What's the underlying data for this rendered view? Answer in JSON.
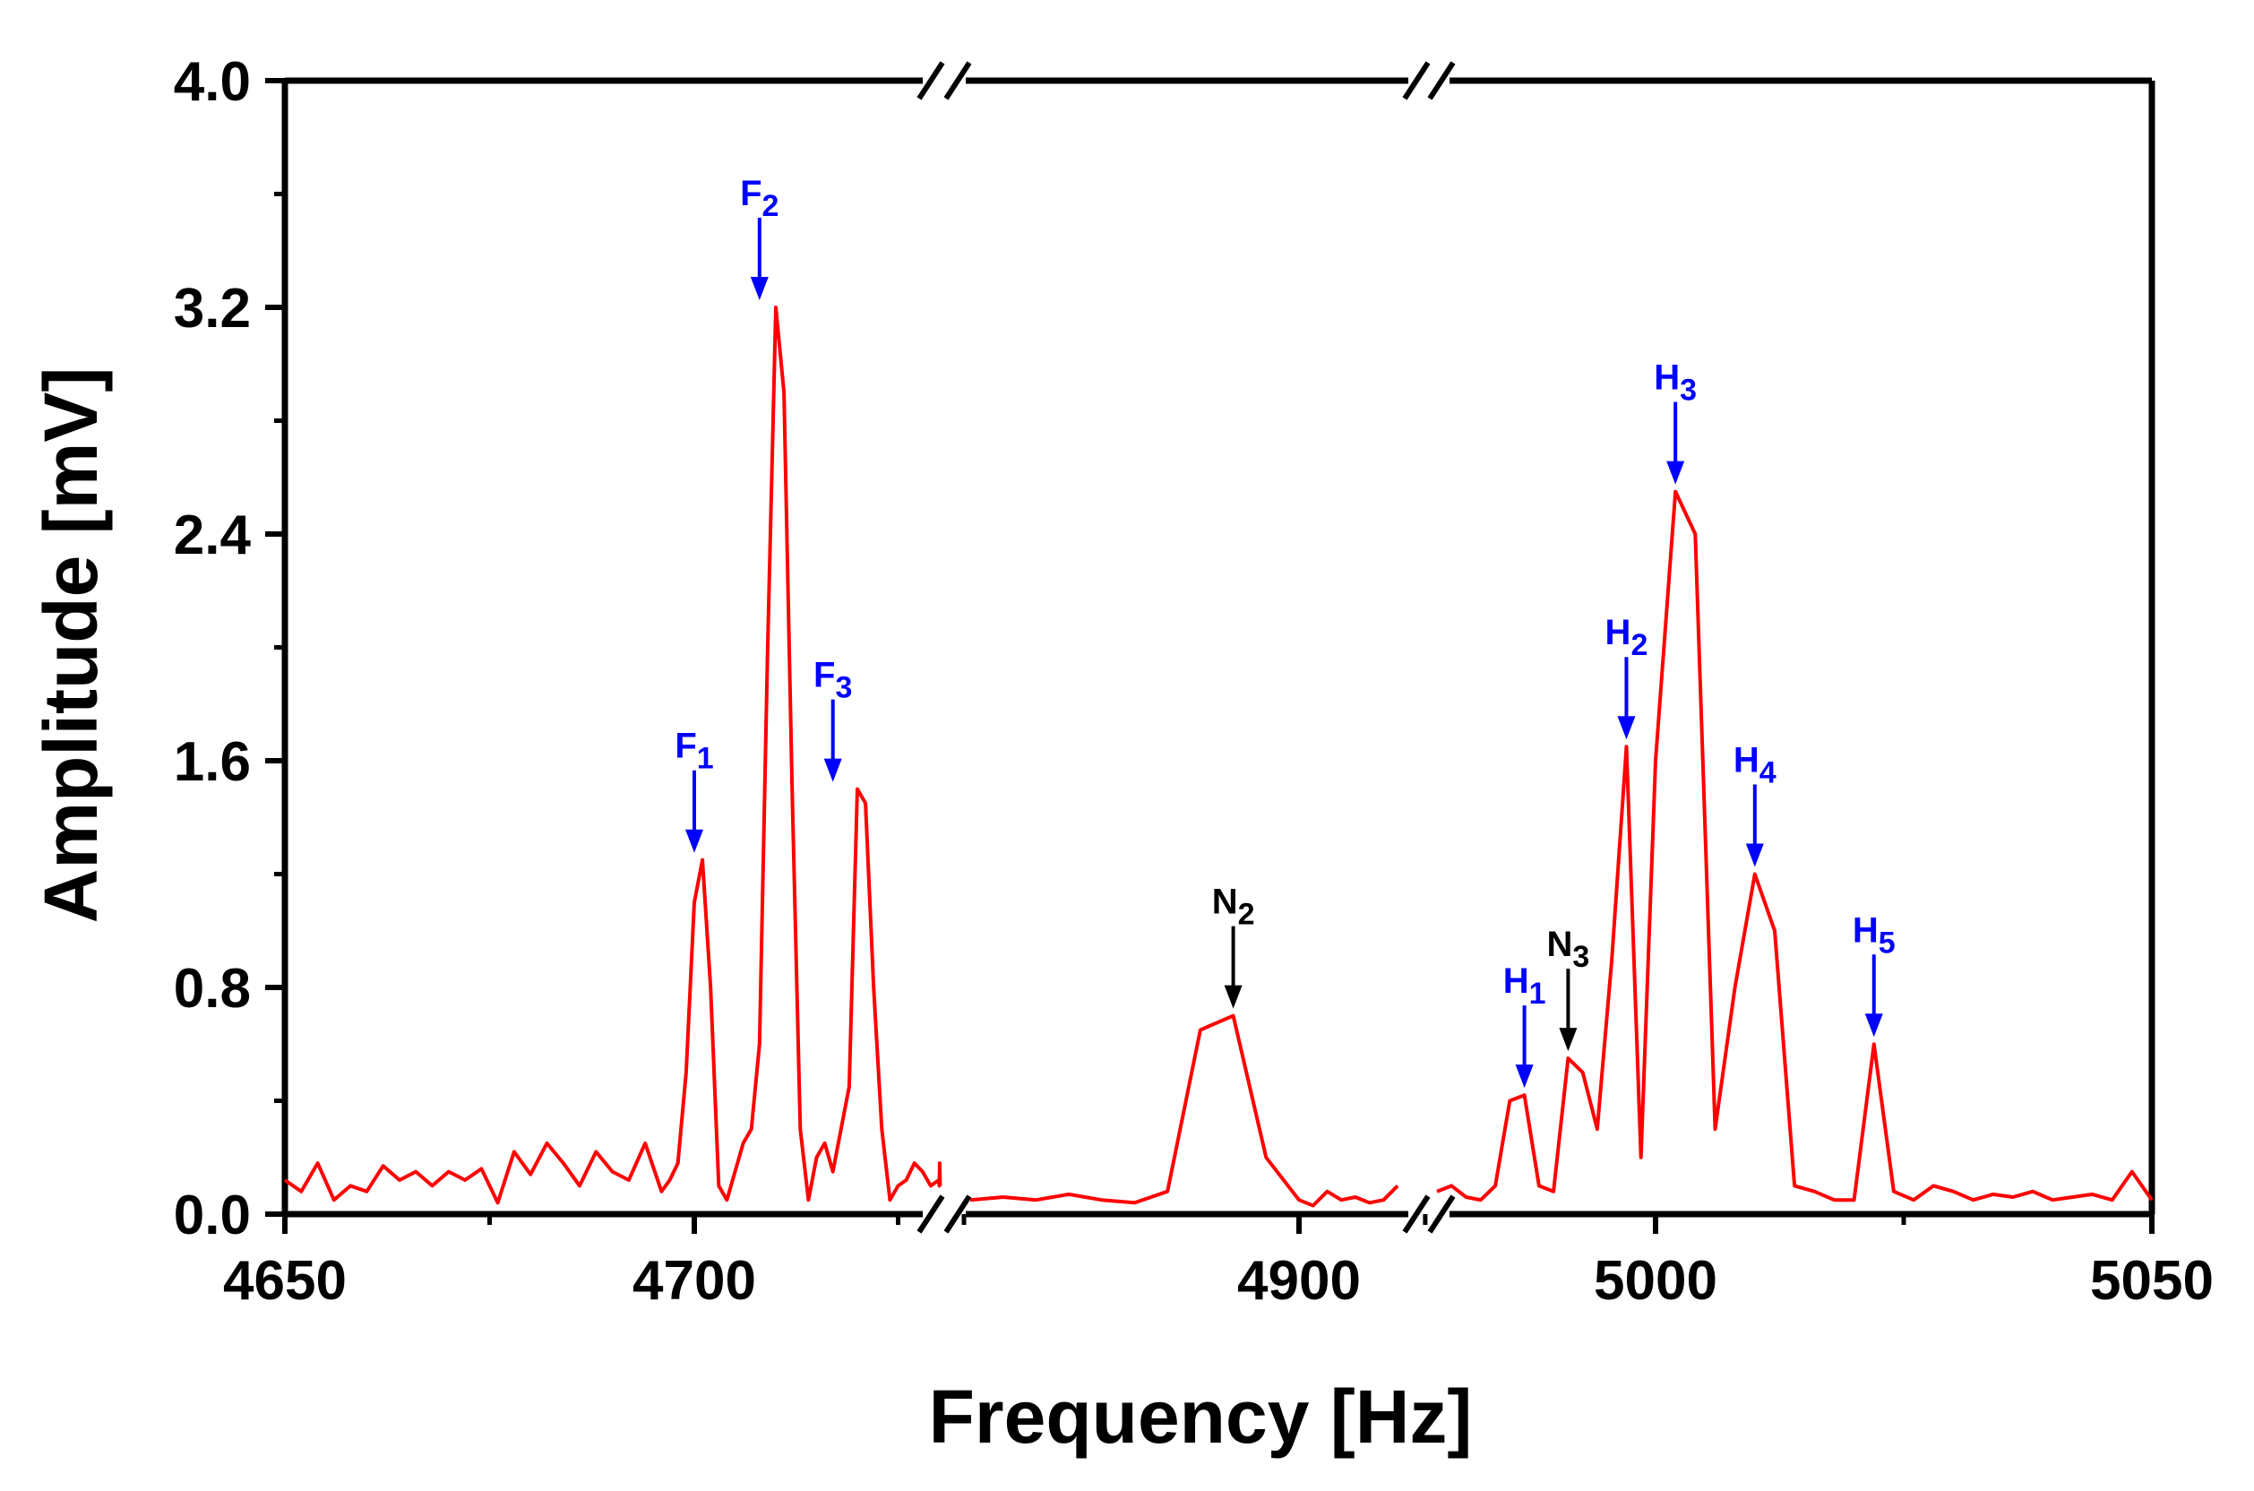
{
  "chart_data": {
    "type": "line",
    "xlabel": "Frequency [Hz]",
    "ylabel": "Amplitude [mV]",
    "ylim": [
      0.0,
      4.0
    ],
    "grid": false,
    "colors": {
      "series": "#ff0000",
      "harmonic_arrow": "#0000ff",
      "noise_arrow": "#000000",
      "axis": "#000000"
    },
    "x_ticks": [
      {
        "value": 4650,
        "label": "4650"
      },
      {
        "value": 4700,
        "label": "4700"
      },
      {
        "value": 4900,
        "label": "4900"
      },
      {
        "value": 5000,
        "label": "5000"
      },
      {
        "value": 5050,
        "label": "5050"
      }
    ],
    "y_ticks": [
      {
        "value": 0.0,
        "label": "0.0"
      },
      {
        "value": 0.8,
        "label": "0.8"
      },
      {
        "value": 1.6,
        "label": "1.6"
      },
      {
        "value": 2.4,
        "label": "2.4"
      },
      {
        "value": 3.2,
        "label": "3.2"
      },
      {
        "value": 4.0,
        "label": "4.0"
      }
    ],
    "axis_breaks": [
      {
        "between": [
          4730,
          4880
        ]
      },
      {
        "between": [
          4915,
          4970
        ]
      }
    ],
    "segments": [
      {
        "x": [
          4650,
          4652,
          4654,
          4656,
          4658,
          4660,
          4662,
          4664,
          4666,
          4668,
          4670,
          4672,
          4674,
          4676,
          4678,
          4680,
          4682,
          4684,
          4686,
          4688,
          4690,
          4692,
          4694,
          4696,
          4697,
          4698,
          4699,
          4700,
          4701,
          4702,
          4703,
          4704,
          4705,
          4706,
          4707,
          4708,
          4709,
          4710,
          4711,
          4712,
          4713,
          4714,
          4715,
          4716,
          4717,
          4718,
          4719,
          4720,
          4721,
          4722,
          4723,
          4724,
          4725,
          4726,
          4727,
          4728,
          4729,
          4730,
          4732,
          4734,
          4736
        ],
        "y": [
          0.12,
          0.08,
          0.18,
          0.05,
          0.1,
          0.08,
          0.17,
          0.12,
          0.15,
          0.1,
          0.15,
          0.12,
          0.16,
          0.04,
          0.22,
          0.14,
          0.25,
          0.18,
          0.1,
          0.22,
          0.15,
          0.12,
          0.25,
          0.08,
          0.12,
          0.18,
          0.5,
          1.1,
          1.25,
          0.8,
          0.1,
          0.05,
          0.15,
          0.25,
          0.3,
          0.6,
          2.0,
          3.2,
          2.9,
          1.5,
          0.3,
          0.05,
          0.2,
          0.25,
          0.15,
          0.3,
          0.45,
          1.5,
          1.45,
          0.8,
          0.3,
          0.05,
          0.1,
          0.12,
          0.18,
          0.15,
          0.1,
          0.12,
          0.1,
          0.18,
          0.1
        ]
      },
      {
        "x": [
          4880,
          4882,
          4884,
          4886,
          4888,
          4890,
          4892,
          4894,
          4896,
          4898,
          4900,
          4902,
          4904,
          4906,
          4908,
          4910,
          4912,
          4914
        ],
        "y": [
          0.05,
          0.06,
          0.05,
          0.07,
          0.05,
          0.04,
          0.08,
          0.65,
          0.7,
          0.2,
          0.05,
          0.03,
          0.08,
          0.05,
          0.06,
          0.04,
          0.05,
          0.1
        ]
      },
      {
        "x": [
          4970,
          4972,
          4974,
          4976,
          4978,
          4980,
          4982,
          4984,
          4986,
          4988,
          4990,
          4992,
          4994,
          4996,
          4998,
          5000,
          5002,
          5004,
          5006,
          5008,
          5010,
          5012,
          5014,
          5016,
          5018,
          5020,
          5022,
          5024,
          5026,
          5028,
          5030,
          5032,
          5034,
          5036,
          5038,
          5040,
          5042,
          5044,
          5046,
          5048,
          5050
        ],
        "y": [
          0.08,
          0.1,
          0.06,
          0.05,
          0.1,
          0.4,
          0.42,
          0.1,
          0.08,
          0.55,
          0.5,
          0.3,
          0.9,
          1.65,
          0.2,
          1.6,
          2.55,
          2.4,
          0.3,
          0.8,
          1.2,
          1.0,
          0.1,
          0.08,
          0.05,
          0.05,
          0.6,
          0.08,
          0.05,
          0.1,
          0.08,
          0.05,
          0.07,
          0.06,
          0.08,
          0.05,
          0.06,
          0.07,
          0.05,
          0.15,
          0.05
        ]
      }
    ],
    "annotations": [
      {
        "base": "F",
        "sub": "1",
        "x": 4700,
        "y": 1.25,
        "color": "harmonic"
      },
      {
        "base": "F",
        "sub": "2",
        "x": 4708,
        "y": 3.2,
        "color": "harmonic"
      },
      {
        "base": "F",
        "sub": "3",
        "x": 4717,
        "y": 1.5,
        "color": "harmonic"
      },
      {
        "base": "N",
        "sub": "2",
        "x": 4896,
        "y": 0.7,
        "color": "noise"
      },
      {
        "base": "H",
        "sub": "1",
        "x": 4982,
        "y": 0.42,
        "color": "harmonic"
      },
      {
        "base": "N",
        "sub": "3",
        "x": 4988,
        "y": 0.55,
        "color": "noise"
      },
      {
        "base": "H",
        "sub": "2",
        "x": 4996,
        "y": 1.65,
        "color": "harmonic"
      },
      {
        "base": "H",
        "sub": "3",
        "x": 5002,
        "y": 2.55,
        "color": "harmonic"
      },
      {
        "base": "H",
        "sub": "4",
        "x": 5010,
        "y": 1.2,
        "color": "harmonic"
      },
      {
        "base": "H",
        "sub": "5",
        "x": 5022,
        "y": 0.6,
        "color": "harmonic"
      }
    ]
  }
}
